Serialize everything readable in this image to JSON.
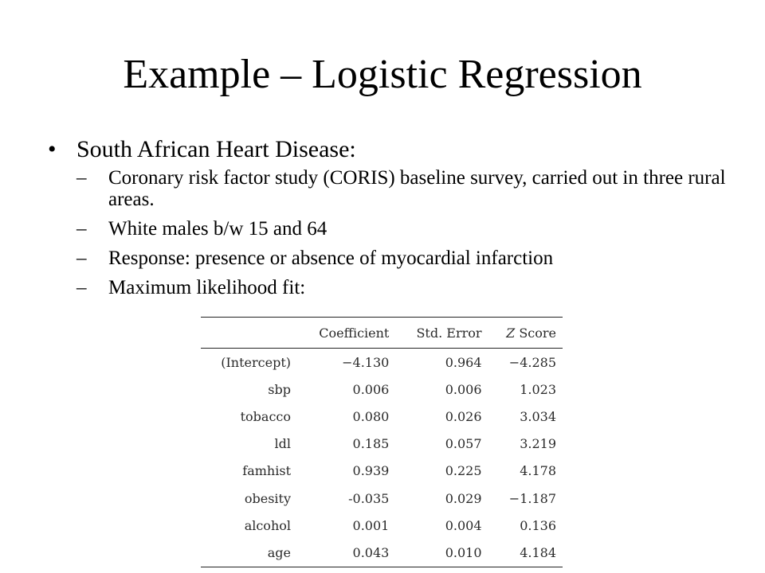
{
  "slide": {
    "title": "Example – Logistic Regression",
    "bullet": {
      "marker": "•",
      "text": "South African Heart Disease:"
    },
    "sub_items": [
      {
        "marker": "–",
        "text": "Coronary risk factor study (CORIS) baseline survey, carried out in three rural areas."
      },
      {
        "marker": "–",
        "text": "White males b/w 15 and 64"
      },
      {
        "marker": "–",
        "text": "Response: presence or absence of myocardial infarction"
      },
      {
        "marker": "–",
        "text": "Maximum likelihood fit:"
      }
    ]
  },
  "table": {
    "headers": {
      "label": "",
      "coefficient": "Coefficient",
      "std_error": "Std. Error",
      "z_prefix": "Z",
      "z_suffix": "Score"
    },
    "rows": [
      {
        "term": "(Intercept)",
        "coefficient": "−4.130",
        "std_error": "0.964",
        "z_score": "−4.285"
      },
      {
        "term": "sbp",
        "coefficient": "0.006",
        "std_error": "0.006",
        "z_score": "1.023"
      },
      {
        "term": "tobacco",
        "coefficient": "0.080",
        "std_error": "0.026",
        "z_score": "3.034"
      },
      {
        "term": "ldl",
        "coefficient": "0.185",
        "std_error": "0.057",
        "z_score": "3.219"
      },
      {
        "term": "famhist",
        "coefficient": "0.939",
        "std_error": "0.225",
        "z_score": "4.178"
      },
      {
        "term": "obesity",
        "coefficient": "-0.035",
        "std_error": "0.029",
        "z_score": "−1.187"
      },
      {
        "term": "alcohol",
        "coefficient": "0.001",
        "std_error": "0.004",
        "z_score": "0.136"
      },
      {
        "term": "age",
        "coefficient": "0.043",
        "std_error": "0.010",
        "z_score": "4.184"
      }
    ]
  }
}
